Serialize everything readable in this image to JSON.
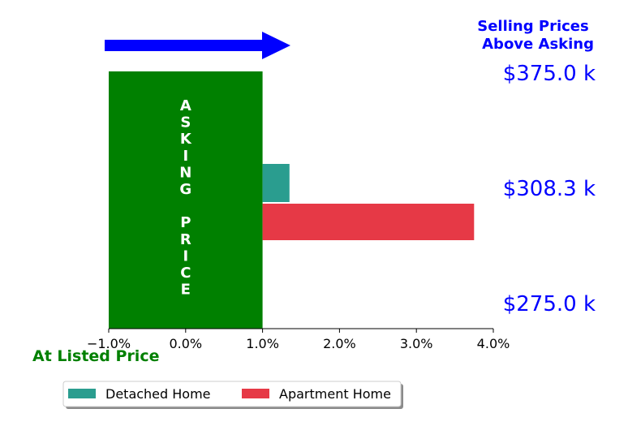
{
  "chart_data": {
    "type": "bar",
    "orientation": "horizontal",
    "x_range": [
      -1.0,
      4.0
    ],
    "x_ticks": [
      "−1.0%",
      "0.0%",
      "1.0%",
      "2.0%",
      "3.0%",
      "4.0%"
    ],
    "x_tick_values": [
      -1.0,
      0.0,
      1.0,
      2.0,
      3.0,
      4.0
    ],
    "asking_price_block": {
      "x_start": -1.0,
      "x_end": 1.0,
      "label": "ASKING  PRICE",
      "color": "#008000"
    },
    "series": [
      {
        "name": "Detached Home",
        "percent_above": 0.35,
        "color": "#2a9d8f"
      },
      {
        "name": "Apartment Home",
        "percent_above": 2.75,
        "color": "#e63946"
      }
    ],
    "price_labels": [
      "$375.0 k",
      "$308.3 k",
      "$275.0 k"
    ],
    "top_right_annotation": [
      "Selling Prices",
      "Above Asking"
    ],
    "bottom_left_annotation": "At Listed Price",
    "arrow_color": "#0000ff",
    "annotation_color": "#0000ff",
    "listed_color": "#008000",
    "grid": false,
    "legend_placement": "bottom-left"
  }
}
